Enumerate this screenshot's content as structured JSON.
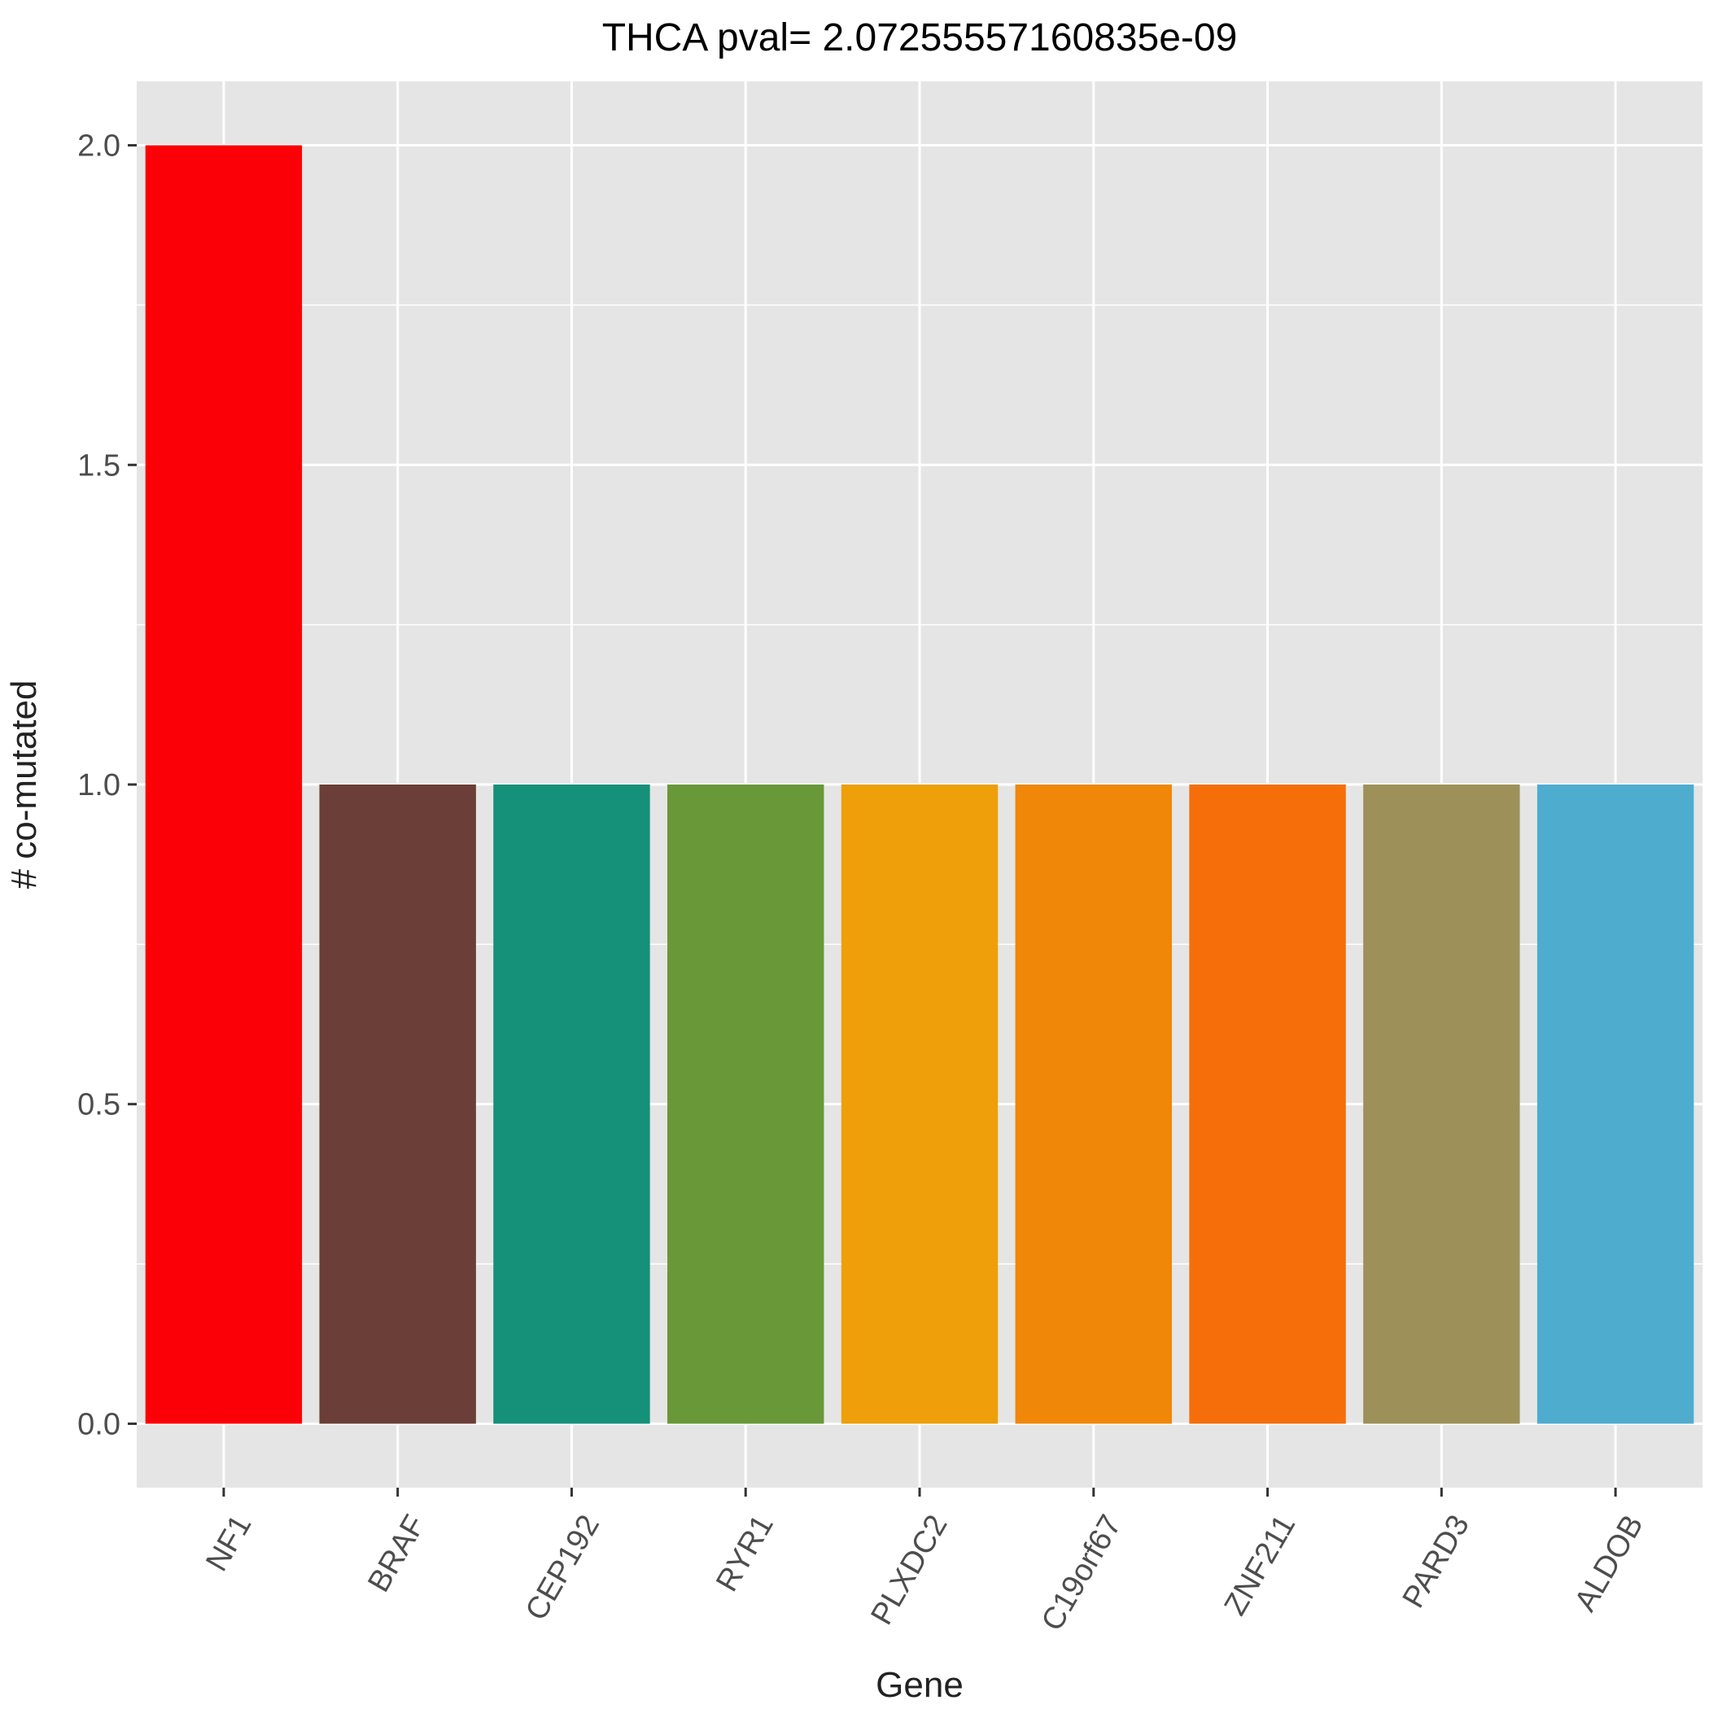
{
  "chart_data": {
    "type": "bar",
    "title": "THCA pval= 2.07255557160835e-09",
    "xlabel": "Gene",
    "ylabel": "# co-mutated",
    "categories": [
      "NF1",
      "BRAF",
      "CEP192",
      "RYR1",
      "PLXDC2",
      "C19orf67",
      "ZNF211",
      "PARD3",
      "ALDOB"
    ],
    "values": [
      2,
      1,
      1,
      1,
      1,
      1,
      1,
      1,
      1
    ],
    "colors": [
      "#FB0007",
      "#6B3F37",
      "#149178",
      "#699838",
      "#EE9F09",
      "#F08709",
      "#F56E0A",
      "#9D9159",
      "#4EACCF"
    ],
    "ylim": [
      -0.1,
      2.1
    ],
    "yticks": [
      0.0,
      0.5,
      1.0,
      1.5,
      2.0
    ],
    "ytick_labels": [
      "0.0",
      "0.5",
      "1.0",
      "1.5",
      "2.0"
    ],
    "grid": true,
    "panel_background": "#E5E5E5",
    "grid_color": "#FFFFFF",
    "legend": "none"
  }
}
